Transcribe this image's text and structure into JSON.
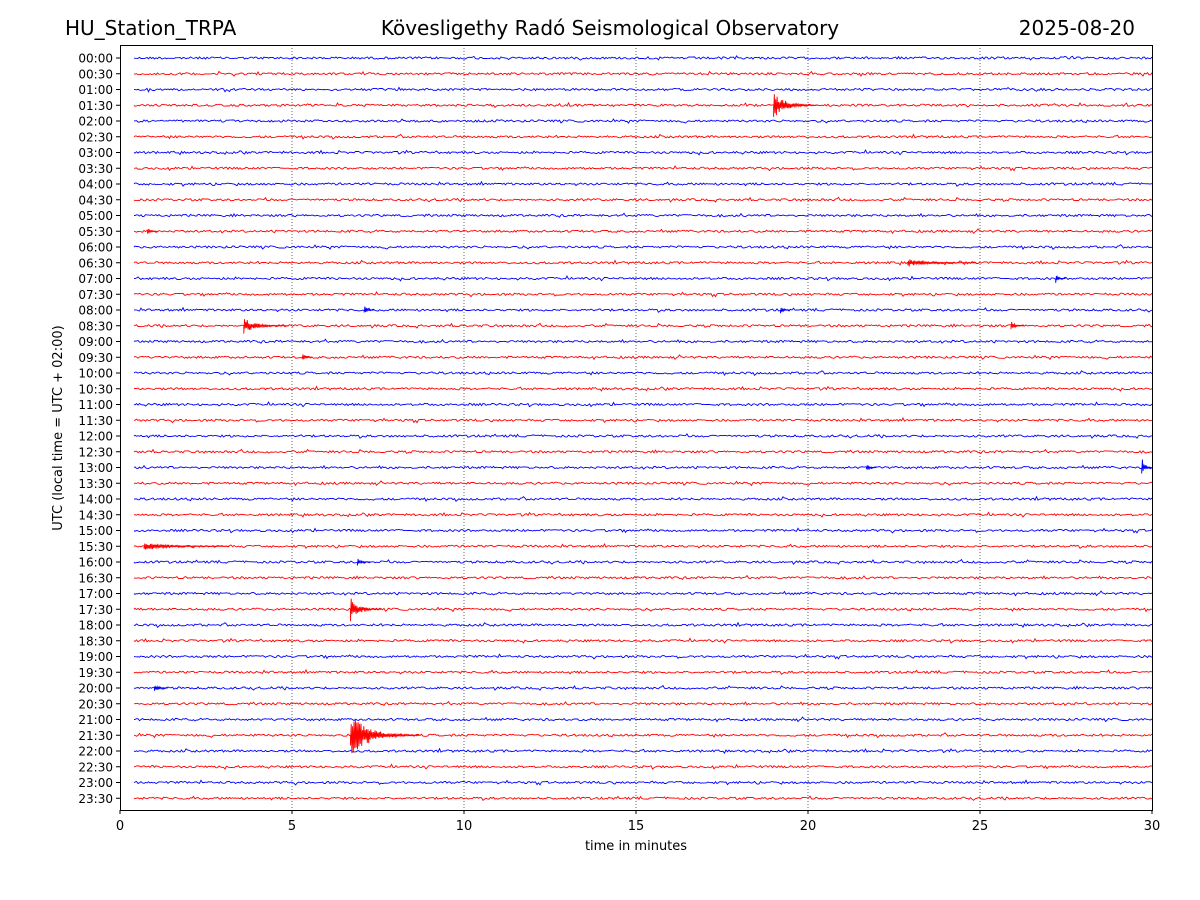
{
  "header": {
    "station": "HU_Station_TRPA",
    "observatory": "Kövesligethy Radó Seismological Observatory",
    "date": "2025-08-20"
  },
  "chart_data": {
    "type": "line",
    "title": "Kövesligethy Radó Seismological Observatory",
    "xlabel": "time in minutes",
    "ylabel": "UTC (local time = UTC + 02:00)",
    "xlim": [
      0,
      30
    ],
    "xticks": [
      0,
      5,
      10,
      15,
      20,
      25,
      30
    ],
    "grid": "vertical dotted lines at x ticks",
    "colors": {
      "even_rows": "#0000ff",
      "odd_rows": "#ff0000"
    },
    "rows": [
      "00:00",
      "00:30",
      "01:00",
      "01:30",
      "02:00",
      "02:30",
      "03:00",
      "03:30",
      "04:00",
      "04:30",
      "05:00",
      "05:30",
      "06:00",
      "06:30",
      "07:00",
      "07:30",
      "08:00",
      "08:30",
      "09:00",
      "09:30",
      "10:00",
      "10:30",
      "11:00",
      "11:30",
      "12:00",
      "12:30",
      "13:00",
      "13:30",
      "14:00",
      "14:30",
      "15:00",
      "15:30",
      "16:00",
      "16:30",
      "17:00",
      "17:30",
      "18:00",
      "18:30",
      "19:00",
      "19:30",
      "20:00",
      "20:30",
      "21:00",
      "21:30",
      "22:00",
      "22:30",
      "23:00",
      "23:30"
    ],
    "events": [
      {
        "row": "01:30",
        "minute": 19.0,
        "amplitude": 14,
        "duration": 1.3
      },
      {
        "row": "05:30",
        "minute": 0.8,
        "amplitude": 4,
        "duration": 0.3
      },
      {
        "row": "06:30",
        "minute": 22.9,
        "amplitude": 4,
        "duration": 2.0
      },
      {
        "row": "07:00",
        "minute": 27.2,
        "amplitude": 5,
        "duration": 0.3
      },
      {
        "row": "08:00",
        "minute": 7.1,
        "amplitude": 5,
        "duration": 0.3
      },
      {
        "row": "08:00",
        "minute": 19.2,
        "amplitude": 4,
        "duration": 0.3
      },
      {
        "row": "08:30",
        "minute": 3.6,
        "amplitude": 8,
        "duration": 1.3
      },
      {
        "row": "08:30",
        "minute": 25.9,
        "amplitude": 5,
        "duration": 0.4
      },
      {
        "row": "09:30",
        "minute": 5.3,
        "amplitude": 5,
        "duration": 0.3
      },
      {
        "row": "13:00",
        "minute": 21.7,
        "amplitude": 4,
        "duration": 0.3
      },
      {
        "row": "13:00",
        "minute": 29.7,
        "amplitude": 11,
        "duration": 0.5
      },
      {
        "row": "15:30",
        "minute": 0.7,
        "amplitude": 4,
        "duration": 2.5
      },
      {
        "row": "16:00",
        "minute": 6.9,
        "amplitude": 4,
        "duration": 0.4
      },
      {
        "row": "17:30",
        "minute": 6.7,
        "amplitude": 13,
        "duration": 0.9
      },
      {
        "row": "20:00",
        "minute": 1.0,
        "amplitude": 5,
        "duration": 0.4
      },
      {
        "row": "21:30",
        "minute": 6.7,
        "amplitude": 24,
        "duration": 2.0
      }
    ]
  }
}
